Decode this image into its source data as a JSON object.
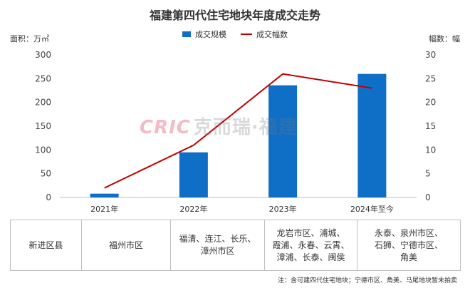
{
  "title": "福建第四代住宅地块年度成交走势",
  "left_unit": "面积：万㎡",
  "right_unit": "幅数：幅",
  "watermark": {
    "brand": "CRIC",
    "text": "克而瑞·福建"
  },
  "chart_data": {
    "type": "bar",
    "categories": [
      "2021年",
      "2022年",
      "2023年",
      "2024年至今"
    ],
    "series": [
      {
        "name": "成交规模",
        "kind": "bar",
        "axis": "left",
        "color": "#0f6fc6",
        "values": [
          8,
          95,
          236,
          260
        ]
      },
      {
        "name": "成交幅数",
        "kind": "line",
        "axis": "right",
        "color": "#c00000",
        "values": [
          2,
          11,
          26,
          23
        ]
      }
    ],
    "y_left": {
      "range": [
        0,
        300
      ],
      "ticks": [
        0,
        50,
        100,
        150,
        200,
        250,
        300
      ]
    },
    "y_right": {
      "range": [
        0,
        30
      ],
      "ticks": [
        0,
        5,
        10,
        15,
        20,
        25,
        30
      ]
    },
    "legend_position": "top-center",
    "grid": false
  },
  "table": {
    "header": "新进区县",
    "cells": [
      [
        "福州市区"
      ],
      [
        "福清、连江、长乐、",
        "漳州市区"
      ],
      [
        "龙岩市区、浦城、",
        "霞浦、永春、云霄、",
        "漳浦、长泰、闽侯"
      ],
      [
        "永泰、泉州市区、",
        "石狮、宁德市区、",
        "角美"
      ]
    ]
  },
  "note": "注：含可建四代住宅地块；宁德市区、角美、马尾地块暂未拍卖"
}
